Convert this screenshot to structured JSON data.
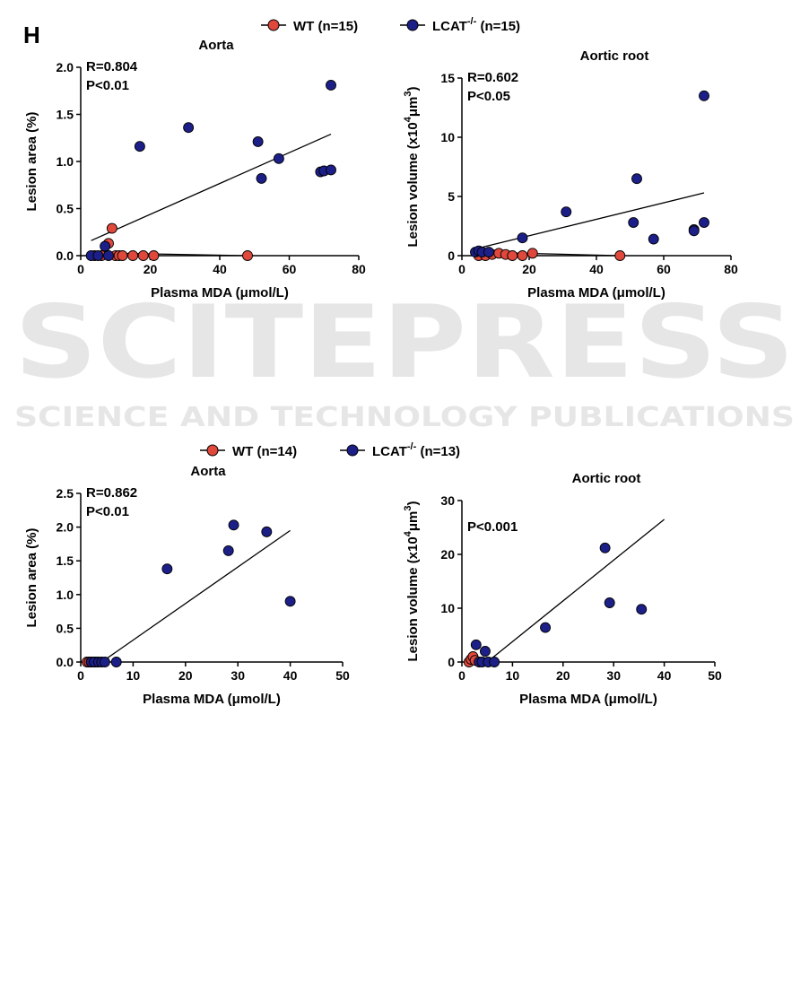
{
  "panel_label": "H",
  "watermark": {
    "main": "SCITEPRESS",
    "sub": "SCIENCE AND TECHNOLOGY PUBLICATIONS"
  },
  "colors": {
    "wt": "#e0483c",
    "lcat": "#1c1f88",
    "axis": "#000000",
    "watermark": "#e4e4e4"
  },
  "legends": [
    {
      "items": [
        {
          "base": "WT (n=15)",
          "sup": "",
          "tail": "",
          "color": "#e0483c"
        },
        {
          "base": "LCAT",
          "sup": "-/-",
          "tail": " (n=15)",
          "color": "#1c1f88"
        }
      ]
    },
    {
      "items": [
        {
          "base": "WT (n=14)",
          "sup": "",
          "tail": "",
          "color": "#e0483c"
        },
        {
          "base": "LCAT",
          "sup": "-/-",
          "tail": " (n=13)",
          "color": "#1c1f88"
        }
      ]
    }
  ],
  "chart_data": [
    {
      "type": "scatter",
      "title": "Aorta",
      "xlabel": "Plasma MDA (μmol/L)",
      "ylabel": "Lesion area (%)",
      "ylabel_parts": null,
      "xlim": [
        0,
        80
      ],
      "ylim": [
        0,
        2.0
      ],
      "xticks": [
        0,
        20,
        40,
        60,
        80
      ],
      "xtick_labels": [
        "0",
        "20",
        "40",
        "60",
        "80"
      ],
      "yticks": [
        0,
        0.5,
        1.0,
        1.5,
        2.0
      ],
      "ytick_labels": [
        "0.0",
        "0.5",
        "1.0",
        "1.5",
        "2.0"
      ],
      "stats": [
        "R=0.804",
        "P<0.01"
      ],
      "series": [
        {
          "name": "WT (n=15)",
          "color": "#e0483c",
          "x": [
            4,
            6,
            8,
            9,
            10,
            11,
            12,
            15,
            18,
            21,
            48
          ],
          "y": [
            0,
            0,
            0.13,
            0.29,
            0,
            0,
            0,
            0,
            0,
            0,
            0
          ]
        },
        {
          "name": "LCAT-/- (n=15)",
          "color": "#1c1f88",
          "x": [
            3,
            5,
            7,
            8,
            17,
            31,
            51,
            52,
            57,
            69,
            70,
            72,
            72
          ],
          "y": [
            0,
            0,
            0.1,
            0,
            1.16,
            1.36,
            1.21,
            0.82,
            1.03,
            0.89,
            0.9,
            0.91,
            1.81
          ]
        }
      ],
      "fit_lines": [
        {
          "x": [
            3,
            72
          ],
          "y": [
            0.16,
            1.29
          ]
        },
        {
          "x": [
            4,
            48
          ],
          "y": [
            0.03,
            0.0
          ]
        }
      ]
    },
    {
      "type": "scatter",
      "title": "Aortic root",
      "xlabel": "Plasma MDA (μmol/L)",
      "ylabel": "Lesion volume (x10^4 μm^3)",
      "ylabel_parts": [
        "Lesion volume (x10",
        "4",
        "μm",
        "3",
        ")"
      ],
      "xlim": [
        0,
        80
      ],
      "ylim": [
        0,
        15
      ],
      "xticks": [
        0,
        20,
        40,
        60,
        80
      ],
      "xtick_labels": [
        "0",
        "20",
        "40",
        "60",
        "80"
      ],
      "yticks": [
        0,
        5,
        10,
        15
      ],
      "ytick_labels": [
        "0",
        "5",
        "10",
        "15"
      ],
      "stats": [
        "R=0.602",
        "P<0.05"
      ],
      "series": [
        {
          "name": "WT (n=15)",
          "color": "#e0483c",
          "x": [
            5,
            7,
            9,
            11,
            13,
            15,
            18,
            21,
            47
          ],
          "y": [
            0,
            0,
            0.1,
            0.2,
            0.1,
            0,
            0,
            0.2,
            0
          ]
        },
        {
          "name": "LCAT-/- (n=15)",
          "color": "#1c1f88",
          "x": [
            4,
            5,
            6,
            8,
            18,
            31,
            51,
            52,
            57,
            69,
            69,
            72,
            72
          ],
          "y": [
            0.3,
            0.4,
            0.3,
            0.3,
            1.5,
            3.7,
            2.8,
            6.5,
            1.4,
            2.2,
            2.1,
            2.8,
            13.5
          ]
        }
      ],
      "fit_lines": [
        {
          "x": [
            3,
            72
          ],
          "y": [
            0.5,
            5.3
          ]
        },
        {
          "x": [
            4,
            47
          ],
          "y": [
            0.3,
            0.0
          ]
        }
      ]
    },
    {
      "type": "scatter",
      "title": "Aorta",
      "xlabel": "Plasma MDA (μmol/L)",
      "ylabel": "Lesion area (%)",
      "ylabel_parts": null,
      "xlim": [
        0,
        50
      ],
      "ylim": [
        0,
        2.5
      ],
      "xticks": [
        0,
        10,
        20,
        30,
        40,
        50
      ],
      "xtick_labels": [
        "0",
        "10",
        "20",
        "30",
        "40",
        "50"
      ],
      "yticks": [
        0,
        0.5,
        1.0,
        1.5,
        2.0,
        2.5
      ],
      "ytick_labels": [
        "0.0",
        "0.5",
        "1.0",
        "1.5",
        "2.0",
        "2.5"
      ],
      "stats": [
        "R=0.862",
        "P<0.01"
      ],
      "series": [
        {
          "name": "WT (n=14)",
          "color": "#e0483c",
          "x": [
            1.2,
            1.6,
            2.0,
            2.4,
            2.8,
            3.2
          ],
          "y": [
            0,
            0,
            0,
            0,
            0,
            0
          ]
        },
        {
          "name": "LCAT-/- (n=13)",
          "color": "#1c1f88",
          "x": [
            2,
            2.6,
            3.4,
            4,
            4.6,
            6.8,
            16.5,
            28.2,
            29.2,
            35.5,
            40
          ],
          "y": [
            0,
            0,
            0,
            0,
            0,
            0,
            1.38,
            1.65,
            2.03,
            1.93,
            0.9
          ]
        }
      ],
      "fit_lines": [
        {
          "x": [
            4,
            40
          ],
          "y": [
            0.0,
            1.95
          ]
        }
      ]
    },
    {
      "type": "scatter",
      "title": "Aortic root",
      "xlabel": "Plasma MDA (μmol/L)",
      "ylabel": "Lesion volume (x10^4 μm^3)",
      "ylabel_parts": [
        "Lesion volume (x10",
        "4",
        "μm",
        "3",
        ")"
      ],
      "xlim": [
        0,
        50
      ],
      "ylim": [
        0,
        30
      ],
      "xticks": [
        0,
        10,
        20,
        30,
        40,
        50
      ],
      "xtick_labels": [
        "0",
        "10",
        "20",
        "30",
        "40",
        "50"
      ],
      "yticks": [
        0,
        10,
        20,
        30
      ],
      "ytick_labels": [
        "0",
        "10",
        "20",
        "30"
      ],
      "stats": [
        "P<0.001"
      ],
      "series": [
        {
          "name": "WT (n=14)",
          "color": "#e0483c",
          "x": [
            1.4,
            1.8,
            2.2,
            2.6
          ],
          "y": [
            0,
            0.5,
            1.0,
            0.3
          ]
        },
        {
          "name": "LCAT-/- (n=13)",
          "color": "#1c1f88",
          "x": [
            2.8,
            3.4,
            4.0,
            4.6,
            5.2,
            6.4,
            16.5,
            28.3,
            29.2,
            35.5
          ],
          "y": [
            3.2,
            0,
            0,
            2.0,
            0,
            0,
            6.4,
            21.2,
            11.0,
            9.8
          ]
        }
      ],
      "fit_lines": [
        {
          "x": [
            5,
            40
          ],
          "y": [
            0.0,
            26.5
          ]
        }
      ]
    }
  ]
}
